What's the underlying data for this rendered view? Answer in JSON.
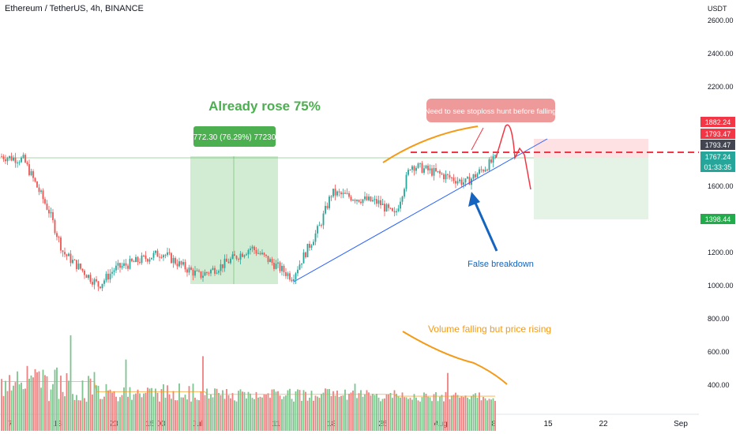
{
  "header": {
    "symbol_title": "Ethereum / TetherUS, 4h, BINANCE"
  },
  "price_axis": {
    "unit": "USDT",
    "ticks": [
      {
        "value": 2600,
        "label": "2600.00"
      },
      {
        "value": 2400,
        "label": "2400.00"
      },
      {
        "value": 2200,
        "label": "2200.00"
      },
      {
        "value": 1600,
        "label": "1600.00"
      },
      {
        "value": 1200,
        "label": "1200.00"
      },
      {
        "value": 1000,
        "label": "1000.00"
      },
      {
        "value": 800,
        "label": "800.00"
      },
      {
        "value": 600,
        "label": "600.00"
      },
      {
        "value": 400,
        "label": "400.00"
      }
    ],
    "price_tags": [
      {
        "value": 1882.24,
        "label": "1882.24",
        "bg": "#f23645",
        "fg": "#ffffff"
      },
      {
        "value": 1826.0,
        "label": "1793.47",
        "bg": "#f23645",
        "fg": "#ffffff"
      },
      {
        "value": 1793.47,
        "label": "1793.47",
        "bg": "#434651",
        "fg": "#ffffff"
      },
      {
        "value": 1767.24,
        "label": "1767.24",
        "bg": "#26a69a",
        "fg": "#ffffff"
      },
      {
        "value": 1398.44,
        "label": "1398.44",
        "bg": "#22ab4a",
        "fg": "#ffffff"
      }
    ],
    "countdown": "01:33:35"
  },
  "time_axis": [
    "7",
    "13",
    "20",
    "15:00",
    "Jul",
    "11",
    "18",
    "25",
    "Aug",
    "8",
    "15",
    "22",
    "Sep"
  ],
  "annotations": {
    "already_rose": "Already rose 75%",
    "range_label": "772.30 (76.29%) 77230",
    "stoploss_note": "Need to see stoploss hunt before falling",
    "false_breakdown": "False breakdown",
    "volume_note": "Volume falling but price rising"
  },
  "colors": {
    "up": "#26a69a",
    "down": "#ef5350",
    "vol_up": "#7dc48e",
    "vol_down": "#f08080",
    "annotation_green": "#4caf50",
    "annotation_blue": "#1565c0",
    "annotation_orange": "#f59a16",
    "annotation_red": "#f23645"
  },
  "chart_data": {
    "type": "candlestick",
    "symbol": "Ethereum / TetherUS",
    "interval": "4h",
    "exchange": "BINANCE",
    "ylim": [
      880,
      2650
    ],
    "close_path_key_points": [
      {
        "x": "Jun 7",
        "price": 1780
      },
      {
        "x": "Jun 10",
        "price": 1760
      },
      {
        "x": "Jun 13",
        "price": 1450
      },
      {
        "x": "Jun 14",
        "price": 1200
      },
      {
        "x": "Jun 18",
        "price": 1000
      },
      {
        "x": "Jun 20",
        "price": 1100
      },
      {
        "x": "Jun 25",
        "price": 1200
      },
      {
        "x": "Jun 28",
        "price": 1120
      },
      {
        "x": "Jul 1",
        "price": 1060
      },
      {
        "x": "Jul 5",
        "price": 1120
      },
      {
        "x": "Jul 8",
        "price": 1230
      },
      {
        "x": "Jul 13",
        "price": 1050
      },
      {
        "x": "Jul 17",
        "price": 1360
      },
      {
        "x": "Jul 18",
        "price": 1560
      },
      {
        "x": "Jul 25",
        "price": 1500
      },
      {
        "x": "Jul 27",
        "price": 1420
      },
      {
        "x": "Jul 29",
        "price": 1730
      },
      {
        "x": "Aug 3",
        "price": 1620
      },
      {
        "x": "Aug 8",
        "price": 1767.24
      }
    ],
    "rally_measurement": {
      "change": 772.3,
      "percent": 76.29,
      "ticks": 77230
    },
    "position": {
      "entry": 1793.47,
      "stop": 1882.24,
      "target": 1398.44
    },
    "current_price": 1767.24
  }
}
